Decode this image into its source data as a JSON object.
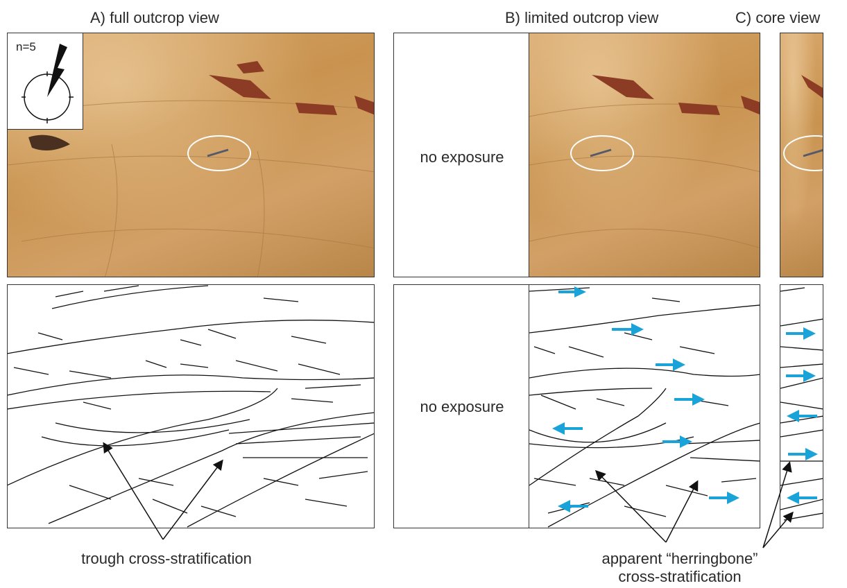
{
  "panels": {
    "a_title": "A) full outcrop view",
    "b_title": "B) limited outcrop view",
    "c_title": "C) core view"
  },
  "rose": {
    "label": "n=5"
  },
  "no_exposure": {
    "upper": "no exposure",
    "lower": "no exposure"
  },
  "captions": {
    "trough": "trough cross-stratification",
    "herring_line1": "apparent “herringbone”",
    "herring_line2": "cross-stratification"
  },
  "colors": {
    "arrow": "#1aa3d8",
    "outline": "#333333",
    "sandstone": "#c9934f"
  }
}
